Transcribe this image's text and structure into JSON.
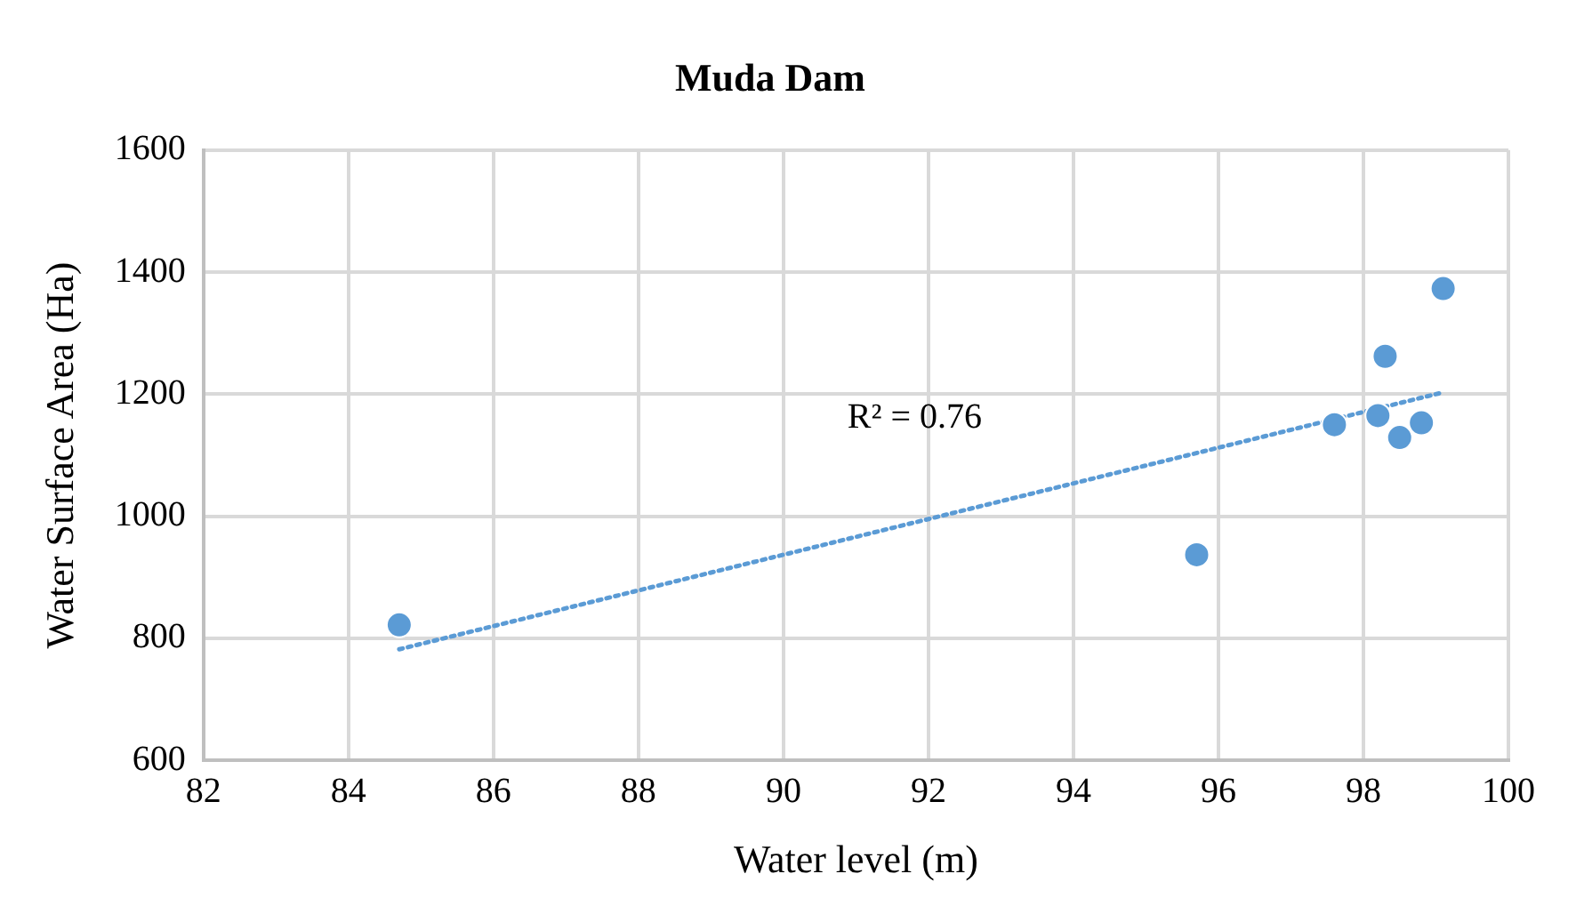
{
  "chart_data": {
    "type": "scatter",
    "title": "Muda Dam",
    "xlabel": "Water level (m)",
    "ylabel": "Water Surface Area (Ha)",
    "xlim": [
      82,
      100
    ],
    "xticks": [
      82,
      84,
      86,
      88,
      90,
      92,
      94,
      96,
      98,
      100
    ],
    "ylim": [
      600,
      1600
    ],
    "yticks": [
      600,
      800,
      1000,
      1200,
      1400,
      1600
    ],
    "grid": true,
    "legend": false,
    "series": [
      {
        "color": "#5b9bd5",
        "marker": "circle",
        "x": [
          84.7,
          95.7,
          97.6,
          98.2,
          98.3,
          98.5,
          98.8,
          99.1
        ],
        "values": [
          822,
          937,
          1150,
          1165,
          1262,
          1129,
          1153,
          1373
        ]
      },
      {
        "type": "line",
        "color": "#5b9bd5",
        "marker": "none",
        "line_style": "dotted",
        "x": [
          84.7,
          99.1
        ],
        "values": [
          782,
          1203
        ]
      }
    ],
    "annotations": [
      "R² = 0.76"
    ]
  }
}
